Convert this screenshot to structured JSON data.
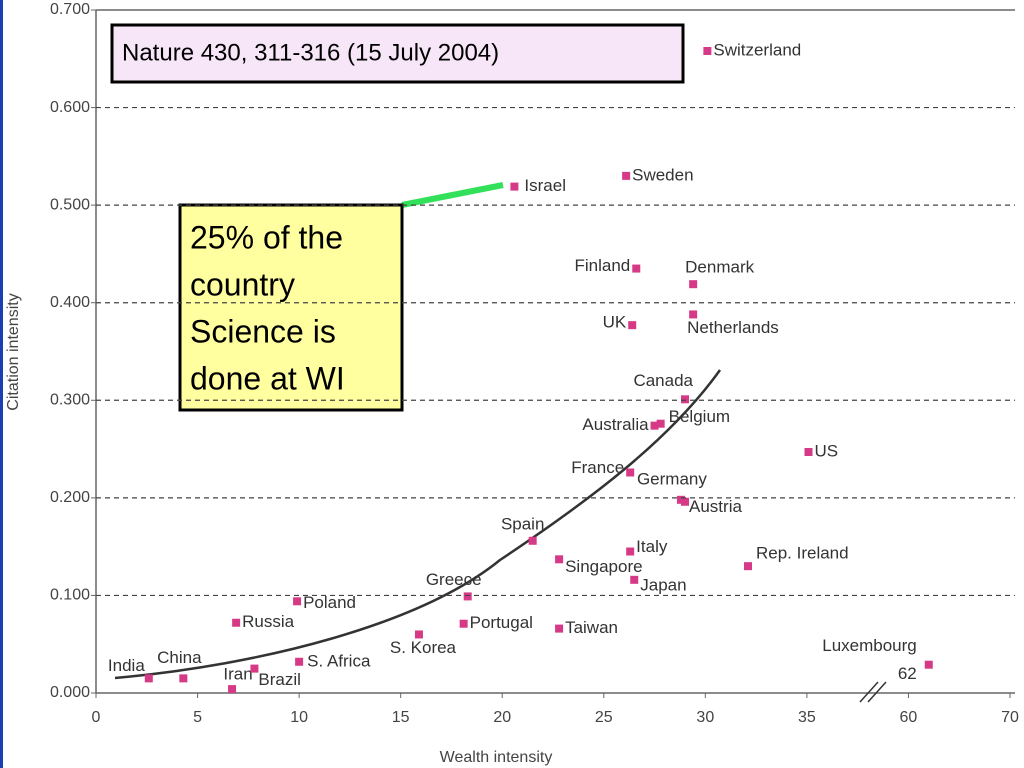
{
  "chart_data": {
    "type": "scatter",
    "x_label": "Wealth intensity",
    "y_label": "Citation intensity",
    "color": "#d63a86",
    "xlim": [
      0,
      70
    ],
    "xticks": [
      0,
      5,
      10,
      15,
      20,
      25,
      30,
      35,
      60,
      70
    ],
    "ylim": [
      0,
      0.7
    ],
    "yticks": [
      {
        "value": 0,
        "label": "0.000"
      },
      {
        "value": 0.1,
        "label": "0.100"
      },
      {
        "value": 0.2,
        "label": "0.200"
      },
      {
        "value": 0.3,
        "label": "0.300"
      },
      {
        "value": 0.4,
        "label": "0.400"
      },
      {
        "value": 0.5,
        "label": "0.500"
      },
      {
        "value": 0.6,
        "label": "0.600"
      },
      {
        "value": 0.7,
        "label": "0.700"
      }
    ],
    "grid": true,
    "points": [
      {
        "name": "India",
        "x": 2.6,
        "y": 0.015
      },
      {
        "name": "China",
        "x": 4.3,
        "y": 0.015
      },
      {
        "name": "Iran",
        "x": 6.7,
        "y": 0.004
      },
      {
        "name": "Brazil",
        "x": 7.8,
        "y": 0.025
      },
      {
        "name": "S. Africa",
        "x": 10.0,
        "y": 0.032
      },
      {
        "name": "Russia",
        "x": 6.9,
        "y": 0.072
      },
      {
        "name": "Poland",
        "x": 9.9,
        "y": 0.094
      },
      {
        "name": "S. Korea",
        "x": 15.9,
        "y": 0.06
      },
      {
        "name": "Portugal",
        "x": 18.1,
        "y": 0.071
      },
      {
        "name": "Greece",
        "x": 18.3,
        "y": 0.099
      },
      {
        "name": "Spain",
        "x": 21.5,
        "y": 0.156
      },
      {
        "name": "Taiwan",
        "x": 22.8,
        "y": 0.066
      },
      {
        "name": "Singapore",
        "x": 22.8,
        "y": 0.137
      },
      {
        "name": "Italy",
        "x": 26.3,
        "y": 0.145
      },
      {
        "name": "Japan",
        "x": 26.5,
        "y": 0.116
      },
      {
        "name": "France",
        "x": 26.3,
        "y": 0.226
      },
      {
        "name": "Germany",
        "x": 28.8,
        "y": 0.198
      },
      {
        "name": "Austria",
        "x": 29.0,
        "y": 0.196
      },
      {
        "name": "Australia",
        "x": 27.5,
        "y": 0.274
      },
      {
        "name": "Belgium",
        "x": 27.8,
        "y": 0.276
      },
      {
        "name": "Canada",
        "x": 29.0,
        "y": 0.301
      },
      {
        "name": "US",
        "x": 35.4,
        "y": 0.247
      },
      {
        "name": "Rep. Ireland",
        "x": 32.1,
        "y": 0.13
      },
      {
        "name": "UK",
        "x": 26.4,
        "y": 0.377
      },
      {
        "name": "Netherlands",
        "x": 29.4,
        "y": 0.388
      },
      {
        "name": "Finland",
        "x": 26.6,
        "y": 0.435
      },
      {
        "name": "Denmark",
        "x": 29.4,
        "y": 0.419
      },
      {
        "name": "Sweden",
        "x": 26.1,
        "y": 0.53
      },
      {
        "name": "Israel",
        "x": 20.6,
        "y": 0.519
      },
      {
        "name": "Switzerland",
        "x": 30.1,
        "y": 0.658
      },
      {
        "name": "Luxembourg",
        "x": 62,
        "y": 0.029,
        "x_label": "62"
      }
    ],
    "annotations": {
      "citation": "Nature 430, 311-316 (15 July 2004)",
      "note": [
        "25% of the",
        "country",
        "Science is",
        "done at WI"
      ]
    }
  }
}
